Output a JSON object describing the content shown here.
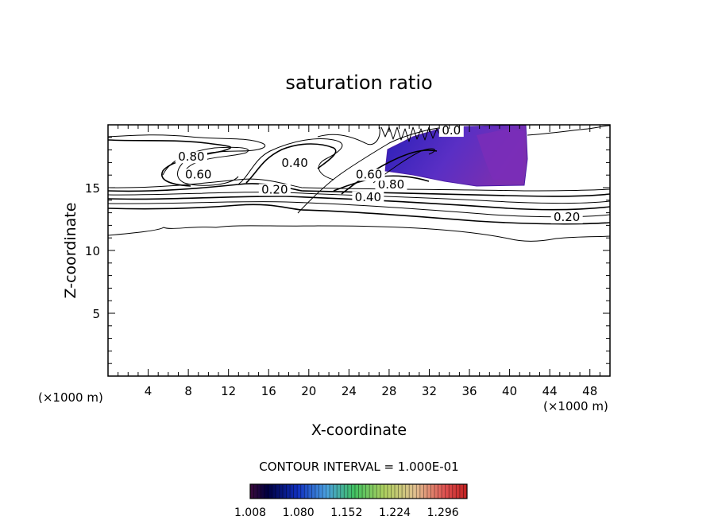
{
  "chart_data": {
    "type": "contour",
    "title": "saturation ratio",
    "xlabel": "X-coordinate",
    "ylabel": "Z-coordinate",
    "x_unit": "(×1000 m)",
    "y_unit": "(×1000 m)",
    "xlim": [
      0,
      50
    ],
    "ylim": [
      0,
      20
    ],
    "x_ticks": [
      4,
      8,
      12,
      16,
      20,
      24,
      28,
      32,
      36,
      40,
      44,
      48
    ],
    "y_ticks": [
      5,
      10,
      15
    ],
    "contour_labels": [
      {
        "text": "0.80",
        "x": 8.3,
        "z": 17.2
      },
      {
        "text": "0.60",
        "x": 9.0,
        "z": 15.8
      },
      {
        "text": "0.40",
        "x": 18.6,
        "z": 16.7
      },
      {
        "text": "0.20",
        "x": 16.6,
        "z": 14.6
      },
      {
        "text": "0.20",
        "x": 45.7,
        "z": 12.4
      },
      {
        "text": "0.40",
        "x": 25.9,
        "z": 14.0
      },
      {
        "text": "0.80",
        "x": 28.2,
        "z": 15.0
      },
      {
        "text": "0.60",
        "x": 26.0,
        "z": 15.8
      },
      {
        "text": "0.0",
        "x": 34.2,
        "z": 19.3
      }
    ],
    "contour_interval_label": "CONTOUR INTERVAL = 1.000E-01",
    "colorbar": {
      "min": 1.008,
      "max": 1.332,
      "tick_labels": [
        "1.008",
        "1.080",
        "1.152",
        "1.224",
        "1.296"
      ]
    }
  }
}
